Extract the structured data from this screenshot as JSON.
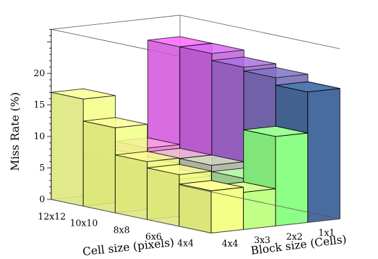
{
  "chart_data": {
    "type": "bar3d",
    "title": "",
    "zlabel": "Miss Rate (%)",
    "zlim": [
      0,
      25
    ],
    "z_ticks": [
      0,
      5,
      10,
      15,
      20
    ],
    "cell_axis": {
      "label": "Cell size (pixels)",
      "categories": [
        "12x12",
        "10x10",
        "8x8",
        "6x6",
        "4x4"
      ]
    },
    "block_axis": {
      "label": "Block size (Cells)",
      "categories": [
        "4x4",
        "3x3",
        "2x2",
        "1x1"
      ]
    },
    "grid": false,
    "colormap": [
      "#f3ff86",
      "#5cff86",
      "#4652a3",
      "#ec5cf5"
    ],
    "values": [
      [
        17.0,
        6.7,
        8.1,
        23.6
      ],
      [
        13.5,
        6.7,
        7.5,
        23.6
      ],
      [
        9.2,
        5.8,
        7.5,
        22.5
      ],
      [
        8.2,
        5.0,
        6.5,
        21.9
      ],
      [
        6.7,
        5.9,
        14.2,
        20.7
      ]
    ]
  }
}
